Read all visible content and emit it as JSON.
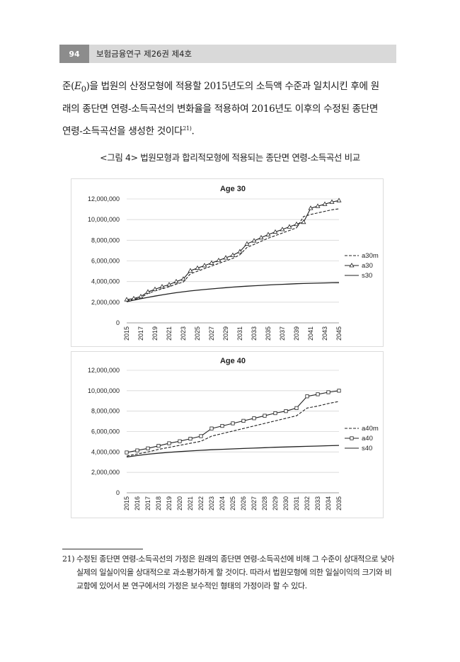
{
  "header": {
    "page_number": "94",
    "journal_title": "보험금융연구 제26권 제4호"
  },
  "body": {
    "line1_a": "준(",
    "line1_e": "E",
    "line1_sub": "0",
    "line1_b": ")을 법원의 산정모형에 적용할 2015년도의 소득액 수준과 일치시킨 후에 원",
    "line2": "래의 종단면 연령-소득곡선의 변화율을 적용하여 2016년도 이후의 수정된 종단면",
    "line3": "연령-소득곡선을 생성한 것이다",
    "footnote_ref": "21)",
    "line3_end": "."
  },
  "figure_caption": "<그림 4> 법원모형과 합리적모형에 적용되는 종단면 연령-소득곡선 비교",
  "chart_data": [
    {
      "type": "line",
      "title": "Age 30",
      "x": [
        2015,
        2016,
        2017,
        2018,
        2019,
        2020,
        2021,
        2022,
        2023,
        2024,
        2025,
        2026,
        2027,
        2028,
        2029,
        2030,
        2031,
        2032,
        2033,
        2034,
        2035,
        2036,
        2037,
        2038,
        2039,
        2040,
        2041,
        2042,
        2043,
        2044,
        2045
      ],
      "x_tick_labels": [
        "2015",
        "2017",
        "2019",
        "2021",
        "2023",
        "2025",
        "2027",
        "2029",
        "2031",
        "2033",
        "2035",
        "2037",
        "2039",
        "2041",
        "2043",
        "2045"
      ],
      "y_tick_labels": [
        "0",
        "2,000,000",
        "4,000,000",
        "6,000,000",
        "8,000,000",
        "10,000,000",
        "12,000,000"
      ],
      "ylim": [
        0,
        12000000
      ],
      "legend_position": "right",
      "series": [
        {
          "name": "a30m",
          "style": "dashed",
          "values": [
            2150000,
            2250000,
            2450000,
            2850000,
            3100000,
            3300000,
            3500000,
            3750000,
            3950000,
            4750000,
            5000000,
            5250000,
            5500000,
            5750000,
            6000000,
            6250000,
            6600000,
            7300000,
            7600000,
            7900000,
            8200000,
            8450000,
            8700000,
            8950000,
            9200000,
            10300000,
            10500000,
            10650000,
            10800000,
            10950000,
            11050000
          ]
        },
        {
          "name": "a30",
          "style": "solid-triangle",
          "values": [
            2250000,
            2350000,
            2550000,
            3000000,
            3250000,
            3500000,
            3700000,
            4000000,
            4250000,
            5050000,
            5300000,
            5550000,
            5800000,
            6050000,
            6300000,
            6550000,
            6900000,
            7650000,
            7950000,
            8250000,
            8550000,
            8800000,
            9050000,
            9300000,
            9550000,
            9750000,
            11100000,
            11300000,
            11500000,
            11700000,
            11850000
          ]
        },
        {
          "name": "s30",
          "style": "solid",
          "values": [
            2050000,
            2200000,
            2340000,
            2470000,
            2590000,
            2710000,
            2820000,
            2920000,
            3010000,
            3090000,
            3160000,
            3230000,
            3290000,
            3350000,
            3410000,
            3460000,
            3510000,
            3550000,
            3590000,
            3630000,
            3670000,
            3700000,
            3730000,
            3760000,
            3790000,
            3810000,
            3830000,
            3850000,
            3870000,
            3880000,
            3890000
          ]
        }
      ]
    },
    {
      "type": "line",
      "title": "Age 40",
      "x": [
        2015,
        2016,
        2017,
        2018,
        2019,
        2020,
        2021,
        2022,
        2023,
        2024,
        2025,
        2026,
        2027,
        2028,
        2029,
        2030,
        2031,
        2032,
        2033,
        2034,
        2035
      ],
      "x_tick_labels": [
        "2015",
        "2016",
        "2017",
        "2018",
        "2019",
        "2020",
        "2021",
        "2022",
        "2023",
        "2024",
        "2025",
        "2026",
        "2027",
        "2028",
        "2029",
        "2030",
        "2031",
        "2032",
        "2033",
        "2034",
        "2035"
      ],
      "y_tick_labels": [
        "0",
        "2,000,000",
        "4,000,000",
        "6,000,000",
        "8,000,000",
        "10,000,000",
        "12,000,000"
      ],
      "ylim": [
        0,
        12000000
      ],
      "legend_position": "right",
      "series": [
        {
          "name": "a40m",
          "style": "dashed",
          "values": [
            3600000,
            3800000,
            4000000,
            4250000,
            4450000,
            4650000,
            4850000,
            5050000,
            5550000,
            5800000,
            6050000,
            6300000,
            6550000,
            6800000,
            7050000,
            7300000,
            7550000,
            8300000,
            8500000,
            8750000,
            8950000
          ]
        },
        {
          "name": "a40",
          "style": "solid-square",
          "values": [
            3950000,
            4150000,
            4350000,
            4600000,
            4850000,
            5050000,
            5300000,
            5550000,
            6300000,
            6550000,
            6800000,
            7050000,
            7300000,
            7550000,
            7800000,
            8000000,
            8300000,
            9450000,
            9650000,
            9850000,
            10000000
          ]
        },
        {
          "name": "s40",
          "style": "solid",
          "values": [
            3500000,
            3650000,
            3780000,
            3880000,
            3960000,
            4040000,
            4100000,
            4160000,
            4220000,
            4260000,
            4300000,
            4340000,
            4380000,
            4420000,
            4460000,
            4490000,
            4520000,
            4550000,
            4580000,
            4610000,
            4640000
          ]
        }
      ]
    }
  ],
  "footnote": {
    "number": "21)",
    "text": "수정된 종단면 연령-소득곡선의 가정은 원래의 종단면 연령-소득곡선에 비해 그 수준이 상대적으로 낮아 실제의 일실이익을 상대적으로 과소평가하게 할 것이다. 따라서 법원모형에 의한 일실이익의 크기와 비교함에 있어서 본 연구에서의 가정은 보수적인 형태의 가정이라 할 수 있다."
  }
}
